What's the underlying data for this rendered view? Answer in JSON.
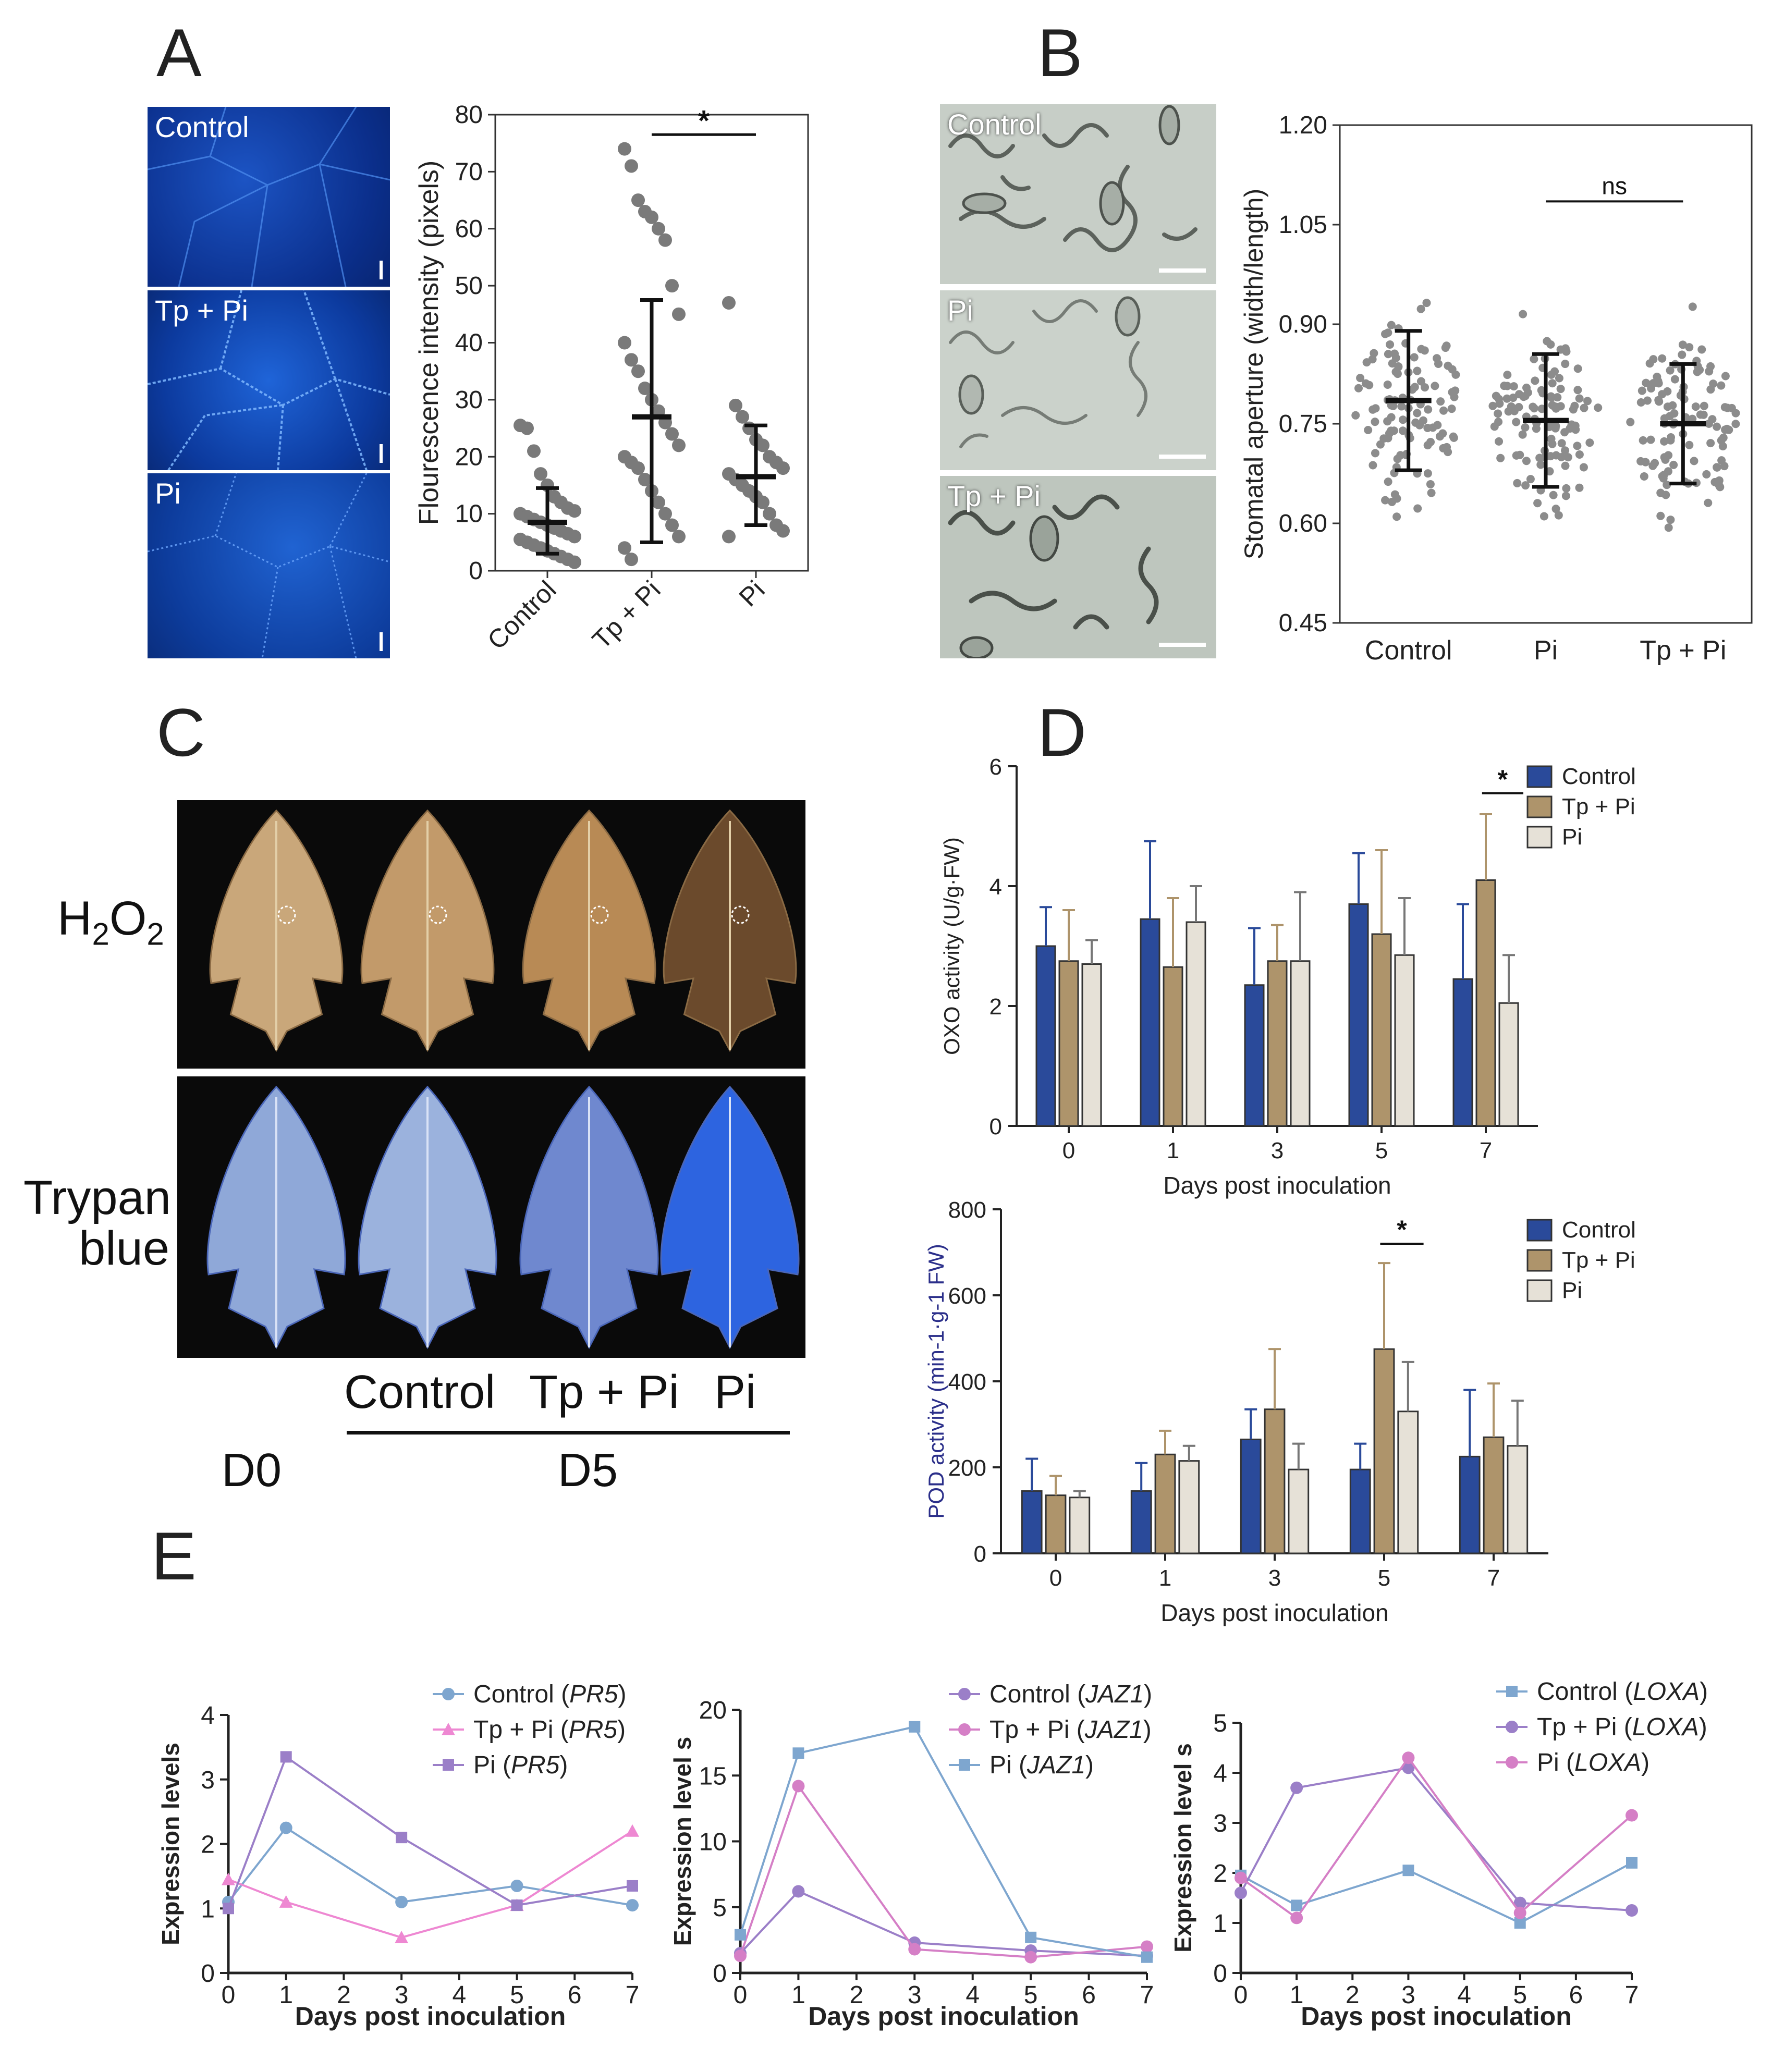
{
  "panels": {
    "A": "A",
    "B": "B",
    "C": "C",
    "D": "D",
    "E": "E"
  },
  "panel_a": {
    "micro_labels": [
      "Control",
      "Tp + Pi",
      "Pi"
    ],
    "chart": {
      "type": "scatter",
      "ylabel": "Flourescence intensity (pixels)",
      "ylim": [
        0,
        80
      ],
      "yticks": [
        0,
        10,
        20,
        30,
        40,
        50,
        60,
        70,
        80
      ],
      "categories": [
        "Control",
        "Tp + Pi",
        "Pi"
      ],
      "means": [
        8.5,
        27,
        16.5
      ],
      "sd_low": [
        3,
        5,
        8
      ],
      "sd_high": [
        14.5,
        47.5,
        25.5
      ],
      "points": [
        [
          25.5,
          25,
          21,
          17,
          15,
          13,
          12,
          11,
          10.5,
          10,
          9.5,
          9,
          8.5,
          8,
          7.5,
          7,
          6.5,
          6,
          5.5,
          5,
          4.5,
          4,
          3.5,
          3,
          2.5,
          2,
          1.5
        ],
        [
          74,
          71,
          65,
          63,
          62,
          60,
          58,
          50,
          45,
          40,
          37,
          35,
          32,
          30,
          28,
          26,
          24,
          22,
          20,
          19,
          18,
          16,
          14,
          12,
          10,
          8,
          6,
          4,
          2
        ],
        [
          47,
          29,
          27,
          25,
          23,
          22,
          20,
          19,
          18,
          17,
          16,
          15,
          14,
          13,
          12,
          10,
          8,
          7,
          6
        ]
      ],
      "sig": "*"
    }
  },
  "panel_b": {
    "micro_labels": [
      "Control",
      "Pi",
      "Tp + Pi"
    ],
    "chart": {
      "type": "scatter",
      "ylabel": "Stomatal aperture (width/length)",
      "ylim": [
        0.45,
        1.2
      ],
      "yticks": [
        "0.45",
        "0.60",
        "0.75",
        "0.90",
        "1.05",
        "1.20"
      ],
      "categories": [
        "Control",
        "Pi",
        "Tp + Pi"
      ],
      "means": [
        0.785,
        0.755,
        0.75
      ],
      "sd_low": [
        0.68,
        0.655,
        0.66
      ],
      "sd_high": [
        0.89,
        0.855,
        0.84
      ],
      "sig": "ns"
    }
  },
  "panel_c": {
    "row_labels": {
      "h2o2_main": "H",
      "h2o2_sub1": "2",
      "h2o2_mid": "O",
      "h2o2_sub2": "2",
      "trypan1": "Trypan",
      "trypan2": "blue"
    },
    "col_labels": [
      "Control",
      "Tp + Pi",
      "Pi"
    ],
    "day_labels": {
      "d0": "D0",
      "d5": "D5"
    }
  },
  "chart_data": [
    {
      "type": "bar",
      "title": "",
      "xlabel": "Days post inoculation",
      "ylabel": "OXO activity (U/g·FW)",
      "ylim": [
        0,
        6
      ],
      "yticks": [
        0,
        2,
        4,
        6
      ],
      "categories": [
        "0",
        "1",
        "3",
        "5",
        "7"
      ],
      "series": [
        {
          "name": "Control",
          "values": [
            3.0,
            3.45,
            2.35,
            3.7,
            2.45
          ],
          "err": [
            0.65,
            1.3,
            0.95,
            0.85,
            1.25
          ],
          "color": "#2a4a9a"
        },
        {
          "name": "Tp + Pi",
          "values": [
            2.75,
            2.65,
            2.75,
            3.2,
            4.1
          ],
          "err": [
            0.85,
            1.15,
            0.6,
            1.4,
            1.1
          ],
          "color": "#ae946b"
        },
        {
          "name": "Pi",
          "values": [
            2.7,
            3.4,
            2.75,
            2.85,
            2.05
          ],
          "err": [
            0.4,
            0.6,
            1.15,
            0.95,
            0.8
          ],
          "color": "#e6e1d7"
        }
      ],
      "sig": "*"
    },
    {
      "type": "bar",
      "title": "",
      "xlabel": "Days post inoculation",
      "ylabel": "POD activity (min-1·g-1 FW)",
      "ylim": [
        0,
        800
      ],
      "yticks": [
        0,
        200,
        400,
        600,
        800
      ],
      "categories": [
        "0",
        "1",
        "3",
        "5",
        "7"
      ],
      "series": [
        {
          "name": "Control",
          "values": [
            145,
            145,
            265,
            195,
            225
          ],
          "err": [
            75,
            65,
            70,
            60,
            155
          ],
          "color": "#2a4a9a"
        },
        {
          "name": "Tp + Pi",
          "values": [
            135,
            230,
            335,
            475,
            270
          ],
          "err": [
            45,
            55,
            140,
            200,
            125
          ],
          "color": "#ae946b"
        },
        {
          "name": "Pi",
          "values": [
            130,
            215,
            195,
            330,
            250
          ],
          "err": [
            15,
            35,
            60,
            115,
            105
          ],
          "color": "#e6e1d7"
        }
      ],
      "sig": "*"
    },
    {
      "type": "line",
      "xlabel": "Days post inoculation",
      "ylabel": "Expression levels",
      "ylim": [
        0,
        4
      ],
      "yticks": [
        0,
        1,
        2,
        3,
        4
      ],
      "x": [
        0,
        1,
        3,
        5,
        7
      ],
      "series": [
        {
          "name": "Control (PR5)",
          "gene": "PR5",
          "label": "Control",
          "values": [
            1.1,
            2.25,
            1.1,
            1.35,
            1.05
          ],
          "color": "#7ea6cf",
          "marker": "circle"
        },
        {
          "name": "Tp + Pi (PR5)",
          "gene": "PR5",
          "label": "Tp + Pi",
          "values": [
            1.45,
            1.1,
            0.55,
            1.05,
            2.2
          ],
          "color": "#ee88d2",
          "marker": "triangle"
        },
        {
          "name": "Pi (PR5)",
          "gene": "PR5",
          "label": "Pi",
          "values": [
            1.0,
            3.35,
            2.1,
            1.05,
            1.35
          ],
          "color": "#9b7fc8",
          "marker": "square"
        }
      ]
    },
    {
      "type": "line",
      "xlabel": "Days post inoculation",
      "ylabel": "Expression level s",
      "ylim": [
        0,
        20
      ],
      "yticks": [
        0,
        5,
        10,
        15,
        20
      ],
      "x": [
        0,
        1,
        3,
        5,
        7
      ],
      "series": [
        {
          "name": "Control (JAZ1)",
          "gene": "JAZ1",
          "label": "Control",
          "values": [
            1.5,
            6.2,
            2.3,
            1.7,
            1.3
          ],
          "color": "#9b7fc8",
          "marker": "circle"
        },
        {
          "name": "Tp + Pi (JAZ1)",
          "gene": "JAZ1",
          "label": "Tp + Pi",
          "values": [
            1.3,
            14.2,
            1.8,
            1.2,
            2.0
          ],
          "color": "#d57fc6",
          "marker": "circle"
        },
        {
          "name": "Pi (JAZ1)",
          "gene": "JAZ1",
          "label": "Pi",
          "values": [
            2.9,
            16.7,
            18.7,
            2.7,
            1.2
          ],
          "color": "#7ea6cf",
          "marker": "square"
        }
      ]
    },
    {
      "type": "line",
      "xlabel": "Days post inoculation",
      "ylabel": "Expression level s",
      "ylim": [
        0,
        5
      ],
      "yticks": [
        0,
        1,
        2,
        3,
        4,
        5
      ],
      "x": [
        0,
        1,
        3,
        5,
        7
      ],
      "series": [
        {
          "name": "Control (LOXA)",
          "gene": "LOXA",
          "label": "Control",
          "values": [
            1.95,
            1.35,
            2.05,
            1.0,
            2.2
          ],
          "color": "#7ea6cf",
          "marker": "square"
        },
        {
          "name": "Tp + Pi (LOXA)",
          "gene": "LOXA",
          "label": "Tp + Pi",
          "values": [
            1.6,
            3.7,
            4.1,
            1.4,
            1.25
          ],
          "color": "#9b7fc8",
          "marker": "circle"
        },
        {
          "name": "Pi (LOXA)",
          "gene": "LOXA",
          "label": "Pi",
          "values": [
            1.9,
            1.1,
            4.3,
            1.2,
            3.15
          ],
          "color": "#d57fc6",
          "marker": "circle"
        }
      ]
    }
  ]
}
